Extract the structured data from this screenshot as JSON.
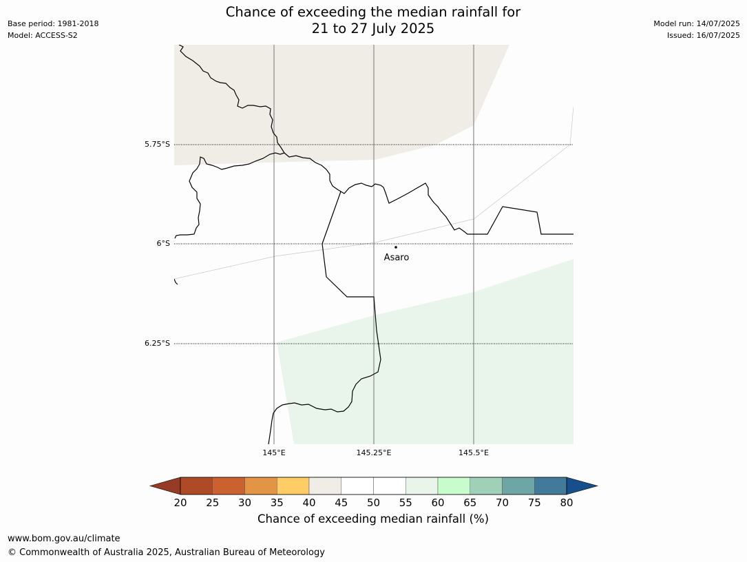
{
  "header": {
    "title_line1": "Chance of exceeding the median rainfall for",
    "title_line2": "21 to 27 July 2025",
    "base_period": "Base period: 1981-2018",
    "model": "Model: ACCESS-S2",
    "model_run": "Model run: 14/07/2025",
    "issued": "Issued: 16/07/2025"
  },
  "map": {
    "lat_labels": [
      "5.75°S",
      "6°S",
      "6.25°S"
    ],
    "lon_labels": [
      "145°E",
      "145.25°E",
      "145.5°E"
    ],
    "place_name": "Asaro",
    "regions": [
      {
        "name": "40-45%",
        "color": "#f0ece6"
      },
      {
        "name": "55-60%",
        "color": "#e9f5ea"
      }
    ]
  },
  "colorbar": {
    "ticks": [
      "20",
      "25",
      "30",
      "35",
      "40",
      "45",
      "50",
      "55",
      "60",
      "65",
      "70",
      "75",
      "80"
    ],
    "colors": [
      "#af4a26",
      "#cb6131",
      "#e39445",
      "#ffcc66",
      "#f0ece6",
      "#ffffff",
      "#ffffff",
      "#e9f5ea",
      "#c9fccc",
      "#9fd1b9",
      "#6ea6a6",
      "#427a99"
    ],
    "under_color": "#973a26",
    "over_color": "#174f8c",
    "label": "Chance of exceeding median rainfall (%)"
  },
  "footer": {
    "url": "www.bom.gov.au/climate",
    "copyright": "© Commonwealth of Australia 2025, Australian Bureau of Meteorology"
  }
}
